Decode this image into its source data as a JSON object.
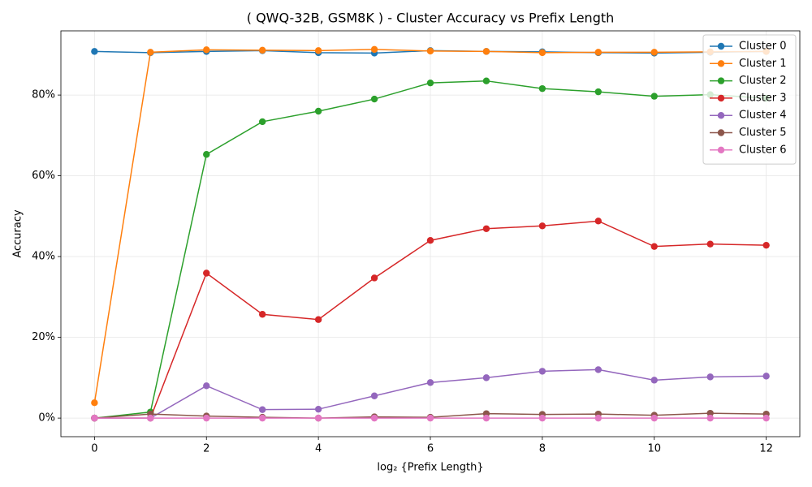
{
  "chart_data": {
    "type": "line",
    "title": "( QWQ-32B, GSM8K ) - Cluster Accuracy vs Prefix Length",
    "x_label": "log₂ {Prefix Length}",
    "y_label": "Accuracy",
    "x": [
      0,
      1,
      2,
      3,
      4,
      5,
      6,
      7,
      8,
      9,
      10,
      11,
      12
    ],
    "series": [
      {
        "name": "Cluster 0",
        "color": "#1f77b4",
        "values": [
          90.8,
          90.5,
          90.8,
          91.0,
          90.5,
          90.4,
          91.0,
          90.8,
          90.7,
          90.5,
          90.4,
          90.6,
          90.8
        ]
      },
      {
        "name": "Cluster 1",
        "color": "#ff7f0e",
        "values": [
          3.8,
          90.6,
          91.2,
          91.1,
          91.0,
          91.3,
          90.9,
          90.8,
          90.5,
          90.6,
          90.6,
          90.7,
          90.8
        ]
      },
      {
        "name": "Cluster 2",
        "color": "#2ca02c",
        "values": [
          0,
          1.5,
          65.3,
          73.4,
          76.0,
          79.0,
          83.0,
          83.5,
          81.6,
          80.8,
          79.7,
          80.1,
          79.2
        ]
      },
      {
        "name": "Cluster 3",
        "color": "#d62728",
        "values": [
          0,
          0,
          35.9,
          25.7,
          24.4,
          34.7,
          44.0,
          46.9,
          47.6,
          48.8,
          42.5,
          43.1,
          42.8
        ]
      },
      {
        "name": "Cluster 4",
        "color": "#9467bd",
        "values": [
          0,
          0,
          8.0,
          2.1,
          2.2,
          5.5,
          8.8,
          10.0,
          11.6,
          12.0,
          9.4,
          10.2,
          10.4
        ]
      },
      {
        "name": "Cluster 5",
        "color": "#8c564b",
        "values": [
          0,
          1.0,
          0.5,
          0.2,
          0,
          0.3,
          0.2,
          1.1,
          0.9,
          1.0,
          0.7,
          1.2,
          1.0
        ]
      },
      {
        "name": "Cluster 6",
        "color": "#e377c2",
        "values": [
          0,
          0,
          0,
          0,
          0,
          0,
          0,
          0,
          0,
          0,
          0,
          0,
          0
        ]
      }
    ],
    "xlim": [
      -0.6,
      12.6
    ],
    "xticks": [
      0,
      2,
      4,
      6,
      8,
      10,
      12
    ],
    "ylim": [
      -4.6,
      95.9
    ],
    "yticks": [
      {
        "value": 0,
        "label": "0%"
      },
      {
        "value": 20,
        "label": "20%"
      },
      {
        "value": 40,
        "label": "40%"
      },
      {
        "value": 60,
        "label": "60%"
      },
      {
        "value": 80,
        "label": "80%"
      }
    ],
    "grid": true,
    "legend": "upper-right"
  }
}
